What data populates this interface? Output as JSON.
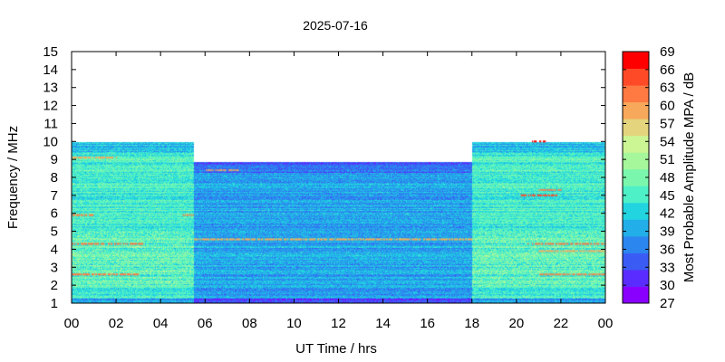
{
  "chart_data": {
    "type": "heatmap",
    "title": "2025-07-16",
    "xlabel": "UT Time / hrs",
    "ylabel": "Frequency / MHz",
    "colorbar_label": "Most Probable Amplitude MPA / dB",
    "xlim": [
      0,
      24
    ],
    "ylim": [
      1,
      15
    ],
    "x_ticks": [
      "00",
      "02",
      "04",
      "06",
      "08",
      "10",
      "12",
      "14",
      "16",
      "18",
      "20",
      "22",
      "00"
    ],
    "y_ticks": [
      "1",
      "2",
      "3",
      "4",
      "5",
      "6",
      "7",
      "8",
      "9",
      "10",
      "11",
      "12",
      "13",
      "14",
      "15"
    ],
    "colorbar": {
      "range": [
        27,
        69
      ],
      "ticks": [
        "27",
        "30",
        "33",
        "36",
        "39",
        "42",
        "45",
        "48",
        "51",
        "54",
        "57",
        "60",
        "63",
        "66",
        "69"
      ],
      "colors": [
        "#8a00ff",
        "#5a2cff",
        "#3a5cf5",
        "#2c86f0",
        "#22aee8",
        "#22d4e0",
        "#4ef0c8",
        "#7af7ad",
        "#a6f79c",
        "#ccf594",
        "#e4d47e",
        "#f8a85a",
        "#ff7a42",
        "#ff4a28",
        "#ff0000"
      ]
    },
    "upper_frequency_limit_mhz": [
      {
        "from_hr": 0,
        "to_hr": 5.5,
        "mhz": 10
      },
      {
        "from_hr": 5.5,
        "to_hr": 18,
        "mhz": 8.9
      },
      {
        "from_hr": 18,
        "to_hr": 24,
        "mhz": 10
      }
    ],
    "typical_level_db": {
      "night_0_to_5.5": 45,
      "day_5.5_to_18": 39,
      "night_18_to_24": 45
    },
    "interference_lines": [
      {
        "mhz": 4.3,
        "from_hr": 0,
        "to_hr": 3.2,
        "db": 63
      },
      {
        "mhz": 2.6,
        "from_hr": 0,
        "to_hr": 3.0,
        "db": 63
      },
      {
        "mhz": 5.9,
        "from_hr": 0,
        "to_hr": 1.0,
        "db": 63
      },
      {
        "mhz": 9.1,
        "from_hr": 0,
        "to_hr": 2.0,
        "db": 60
      },
      {
        "mhz": 5.9,
        "from_hr": 5.0,
        "to_hr": 5.5,
        "db": 63
      },
      {
        "mhz": 4.55,
        "from_hr": 5.5,
        "to_hr": 18,
        "db": 60
      },
      {
        "mhz": 8.4,
        "from_hr": 6.0,
        "to_hr": 7.5,
        "db": 60
      },
      {
        "mhz": 7.0,
        "from_hr": 20.2,
        "to_hr": 21.8,
        "db": 66
      },
      {
        "mhz": 7.3,
        "from_hr": 21.0,
        "to_hr": 22.0,
        "db": 63
      },
      {
        "mhz": 4.3,
        "from_hr": 20.5,
        "to_hr": 24,
        "db": 63
      },
      {
        "mhz": 2.6,
        "from_hr": 21.0,
        "to_hr": 24,
        "db": 63
      },
      {
        "mhz": 3.9,
        "from_hr": 21.0,
        "to_hr": 24,
        "db": 60
      },
      {
        "mhz": 10.0,
        "from_hr": 20.7,
        "to_hr": 21.3,
        "db": 69
      }
    ]
  }
}
